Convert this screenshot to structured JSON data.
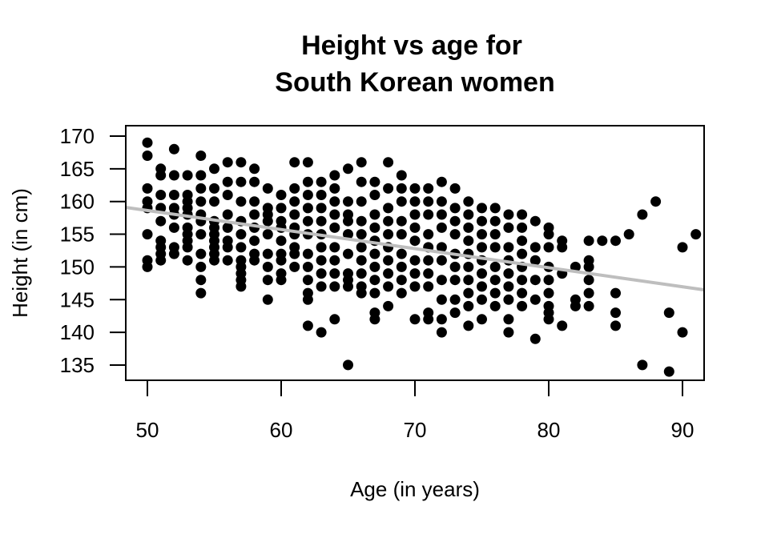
{
  "chart_data": {
    "type": "scatter",
    "title": "Height vs age for South Korean women",
    "title_lines": [
      "Height vs age for",
      "South Korean women"
    ],
    "xlabel": "Age (in years)",
    "ylabel": "Height (in cm)",
    "xlim": [
      48.4,
      91.6
    ],
    "ylim": [
      133.2,
      171.2
    ],
    "x_ticks": [
      50,
      60,
      70,
      80,
      90
    ],
    "y_ticks": [
      135,
      140,
      145,
      150,
      155,
      160,
      165,
      170
    ],
    "grid": false,
    "legend": null,
    "point_color": "#000000",
    "trend_line": {
      "color": "#bebebe",
      "x": [
        48.4,
        91.6
      ],
      "y": [
        159.1,
        146.5
      ],
      "slope": -0.29
    },
    "points": [
      [
        50,
        169
      ],
      [
        50,
        167
      ],
      [
        50,
        162
      ],
      [
        50,
        160
      ],
      [
        50,
        159
      ],
      [
        50,
        155
      ],
      [
        50,
        151
      ],
      [
        50,
        150
      ],
      [
        51,
        165
      ],
      [
        51,
        164
      ],
      [
        51,
        161
      ],
      [
        51,
        159
      ],
      [
        51,
        157
      ],
      [
        51,
        154
      ],
      [
        51,
        153
      ],
      [
        51,
        152
      ],
      [
        51,
        151
      ],
      [
        52,
        168
      ],
      [
        52,
        164
      ],
      [
        52,
        161
      ],
      [
        52,
        159
      ],
      [
        52,
        158
      ],
      [
        52,
        156
      ],
      [
        52,
        153
      ],
      [
        52,
        152
      ],
      [
        53,
        164
      ],
      [
        53,
        161
      ],
      [
        53,
        160
      ],
      [
        53,
        159
      ],
      [
        53,
        158
      ],
      [
        53,
        156
      ],
      [
        53,
        155
      ],
      [
        53,
        154
      ],
      [
        53,
        153
      ],
      [
        53,
        151
      ],
      [
        54,
        167
      ],
      [
        54,
        164
      ],
      [
        54,
        162
      ],
      [
        54,
        160
      ],
      [
        54,
        158
      ],
      [
        54,
        157
      ],
      [
        54,
        155
      ],
      [
        54,
        152
      ],
      [
        54,
        150
      ],
      [
        54,
        148
      ],
      [
        54,
        146
      ],
      [
        55,
        165
      ],
      [
        55,
        162
      ],
      [
        55,
        160
      ],
      [
        55,
        157
      ],
      [
        55,
        156
      ],
      [
        55,
        155
      ],
      [
        55,
        154
      ],
      [
        55,
        153
      ],
      [
        55,
        152
      ],
      [
        55,
        151
      ],
      [
        56,
        166
      ],
      [
        56,
        163
      ],
      [
        56,
        161
      ],
      [
        56,
        158
      ],
      [
        56,
        156
      ],
      [
        56,
        154
      ],
      [
        56,
        153
      ],
      [
        56,
        151
      ],
      [
        57,
        166
      ],
      [
        57,
        163
      ],
      [
        57,
        160
      ],
      [
        57,
        157
      ],
      [
        57,
        155
      ],
      [
        57,
        153
      ],
      [
        57,
        151
      ],
      [
        57,
        150
      ],
      [
        57,
        149
      ],
      [
        57,
        148
      ],
      [
        57,
        147
      ],
      [
        58,
        165
      ],
      [
        58,
        163
      ],
      [
        58,
        160
      ],
      [
        58,
        158
      ],
      [
        58,
        156
      ],
      [
        58,
        154
      ],
      [
        58,
        152
      ],
      [
        58,
        151
      ],
      [
        59,
        162
      ],
      [
        59,
        159
      ],
      [
        59,
        158
      ],
      [
        59,
        157
      ],
      [
        59,
        155
      ],
      [
        59,
        152
      ],
      [
        59,
        150
      ],
      [
        59,
        148
      ],
      [
        59,
        145
      ],
      [
        60,
        161
      ],
      [
        60,
        159
      ],
      [
        60,
        157
      ],
      [
        60,
        156
      ],
      [
        60,
        154
      ],
      [
        60,
        152
      ],
      [
        60,
        151
      ],
      [
        60,
        149
      ],
      [
        60,
        148
      ],
      [
        61,
        166
      ],
      [
        61,
        162
      ],
      [
        61,
        160
      ],
      [
        61,
        158
      ],
      [
        61,
        156
      ],
      [
        61,
        155
      ],
      [
        61,
        153
      ],
      [
        61,
        152
      ],
      [
        61,
        150
      ],
      [
        62,
        166
      ],
      [
        62,
        163
      ],
      [
        62,
        161
      ],
      [
        62,
        159
      ],
      [
        62,
        157
      ],
      [
        62,
        155
      ],
      [
        62,
        152
      ],
      [
        62,
        150
      ],
      [
        62,
        148
      ],
      [
        62,
        146
      ],
      [
        62,
        145
      ],
      [
        62,
        141
      ],
      [
        63,
        163
      ],
      [
        63,
        161
      ],
      [
        63,
        159
      ],
      [
        63,
        157
      ],
      [
        63,
        155
      ],
      [
        63,
        153
      ],
      [
        63,
        151
      ],
      [
        63,
        149
      ],
      [
        63,
        147
      ],
      [
        63,
        140
      ],
      [
        64,
        164
      ],
      [
        64,
        162
      ],
      [
        64,
        160
      ],
      [
        64,
        158
      ],
      [
        64,
        156
      ],
      [
        64,
        153
      ],
      [
        64,
        151
      ],
      [
        64,
        149
      ],
      [
        64,
        147
      ],
      [
        64,
        142
      ],
      [
        65,
        165
      ],
      [
        65,
        160
      ],
      [
        65,
        158
      ],
      [
        65,
        157
      ],
      [
        65,
        155
      ],
      [
        65,
        152
      ],
      [
        65,
        149
      ],
      [
        65,
        148
      ],
      [
        65,
        147
      ],
      [
        65,
        135
      ],
      [
        66,
        166
      ],
      [
        66,
        163
      ],
      [
        66,
        160
      ],
      [
        66,
        157
      ],
      [
        66,
        155
      ],
      [
        66,
        153
      ],
      [
        66,
        151
      ],
      [
        66,
        149
      ],
      [
        66,
        147
      ],
      [
        66,
        146
      ],
      [
        67,
        163
      ],
      [
        67,
        161
      ],
      [
        67,
        158
      ],
      [
        67,
        156
      ],
      [
        67,
        154
      ],
      [
        67,
        152
      ],
      [
        67,
        150
      ],
      [
        67,
        148
      ],
      [
        67,
        146
      ],
      [
        67,
        143
      ],
      [
        67,
        142
      ],
      [
        68,
        166
      ],
      [
        68,
        162
      ],
      [
        68,
        159
      ],
      [
        68,
        157
      ],
      [
        68,
        155
      ],
      [
        68,
        153
      ],
      [
        68,
        151
      ],
      [
        68,
        149
      ],
      [
        68,
        147
      ],
      [
        68,
        144
      ],
      [
        69,
        164
      ],
      [
        69,
        162
      ],
      [
        69,
        160
      ],
      [
        69,
        157
      ],
      [
        69,
        155
      ],
      [
        69,
        152
      ],
      [
        69,
        150
      ],
      [
        69,
        148
      ],
      [
        69,
        146
      ],
      [
        70,
        162
      ],
      [
        70,
        160
      ],
      [
        70,
        158
      ],
      [
        70,
        156
      ],
      [
        70,
        154
      ],
      [
        70,
        151
      ],
      [
        70,
        149
      ],
      [
        70,
        147
      ],
      [
        70,
        142
      ],
      [
        71,
        162
      ],
      [
        71,
        160
      ],
      [
        71,
        158
      ],
      [
        71,
        155
      ],
      [
        71,
        153
      ],
      [
        71,
        151
      ],
      [
        71,
        149
      ],
      [
        71,
        147
      ],
      [
        71,
        143
      ],
      [
        71,
        142
      ],
      [
        72,
        163
      ],
      [
        72,
        160
      ],
      [
        72,
        158
      ],
      [
        72,
        156
      ],
      [
        72,
        153
      ],
      [
        72,
        151
      ],
      [
        72,
        148
      ],
      [
        72,
        145
      ],
      [
        72,
        142
      ],
      [
        72,
        140
      ],
      [
        73,
        162
      ],
      [
        73,
        159
      ],
      [
        73,
        157
      ],
      [
        73,
        155
      ],
      [
        73,
        152
      ],
      [
        73,
        150
      ],
      [
        73,
        148
      ],
      [
        73,
        145
      ],
      [
        73,
        143
      ],
      [
        74,
        160
      ],
      [
        74,
        158
      ],
      [
        74,
        156
      ],
      [
        74,
        154
      ],
      [
        74,
        152
      ],
      [
        74,
        150
      ],
      [
        74,
        148
      ],
      [
        74,
        146
      ],
      [
        74,
        144
      ],
      [
        74,
        141
      ],
      [
        75,
        159
      ],
      [
        75,
        157
      ],
      [
        75,
        155
      ],
      [
        75,
        153
      ],
      [
        75,
        151
      ],
      [
        75,
        149
      ],
      [
        75,
        147
      ],
      [
        75,
        145
      ],
      [
        75,
        142
      ],
      [
        76,
        159
      ],
      [
        76,
        157
      ],
      [
        76,
        155
      ],
      [
        76,
        153
      ],
      [
        76,
        150
      ],
      [
        76,
        148
      ],
      [
        76,
        146
      ],
      [
        76,
        144
      ],
      [
        77,
        158
      ],
      [
        77,
        156
      ],
      [
        77,
        153
      ],
      [
        77,
        151
      ],
      [
        77,
        149
      ],
      [
        77,
        147
      ],
      [
        77,
        145
      ],
      [
        77,
        142
      ],
      [
        77,
        140
      ],
      [
        78,
        158
      ],
      [
        78,
        156
      ],
      [
        78,
        154
      ],
      [
        78,
        152
      ],
      [
        78,
        150
      ],
      [
        78,
        148
      ],
      [
        78,
        146
      ],
      [
        78,
        144
      ],
      [
        79,
        157
      ],
      [
        79,
        153
      ],
      [
        79,
        151
      ],
      [
        79,
        148
      ],
      [
        79,
        145
      ],
      [
        79,
        139
      ],
      [
        80,
        156
      ],
      [
        80,
        155
      ],
      [
        80,
        153
      ],
      [
        80,
        150
      ],
      [
        80,
        148
      ],
      [
        80,
        146
      ],
      [
        80,
        144
      ],
      [
        80,
        143
      ],
      [
        80,
        142
      ],
      [
        81,
        154
      ],
      [
        81,
        153
      ],
      [
        81,
        149
      ],
      [
        81,
        141
      ],
      [
        82,
        150
      ],
      [
        82,
        145
      ],
      [
        82,
        144
      ],
      [
        83,
        154
      ],
      [
        83,
        151
      ],
      [
        83,
        150
      ],
      [
        83,
        148
      ],
      [
        83,
        146
      ],
      [
        83,
        144
      ],
      [
        84,
        154
      ],
      [
        85,
        154
      ],
      [
        85,
        146
      ],
      [
        85,
        143
      ],
      [
        85,
        141
      ],
      [
        86,
        155
      ],
      [
        87,
        158
      ],
      [
        87,
        135
      ],
      [
        88,
        160
      ],
      [
        89,
        143
      ],
      [
        89,
        134
      ],
      [
        90,
        153
      ],
      [
        90,
        140
      ],
      [
        91,
        155
      ]
    ]
  }
}
